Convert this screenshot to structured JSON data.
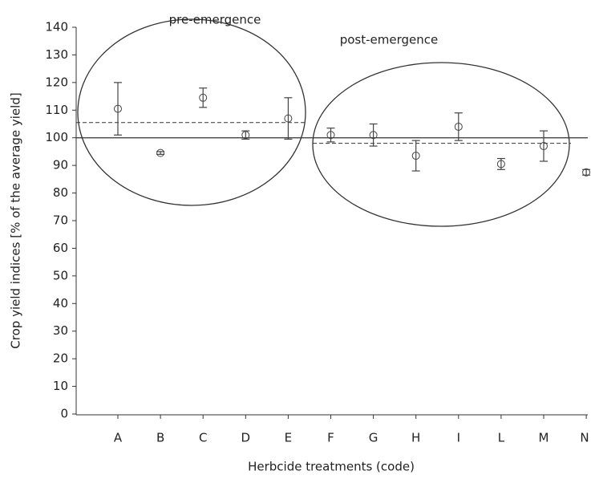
{
  "chart_data": {
    "type": "errorbar",
    "y_label": "Crop yield indices [% of the average yield]",
    "x_label": "Herbcide treatments (code)",
    "categories": [
      "A",
      "B",
      "C",
      "D",
      "E",
      "F",
      "G",
      "H",
      "I",
      "L",
      "M",
      "N"
    ],
    "series": [
      {
        "values": [
          110.5,
          94.5,
          114.5,
          101,
          107,
          101,
          101,
          93.5,
          104,
          90.5,
          97,
          87.5
        ],
        "errors": [
          9.5,
          0.5,
          3.5,
          1.5,
          7.5,
          2.5,
          4,
          5.5,
          5,
          2,
          5.5,
          1
        ],
        "color": "#444"
      }
    ],
    "reference_line": 100,
    "groups": [
      {
        "label": "pre-emergence",
        "mean": 105.5
      },
      {
        "label": "post-emergence",
        "mean": 98
      }
    ],
    "ylim": [
      0,
      140
    ],
    "yticks": [
      0,
      10,
      20,
      30,
      40,
      50,
      60,
      70,
      80,
      90,
      100,
      110,
      120,
      130,
      140
    ]
  }
}
